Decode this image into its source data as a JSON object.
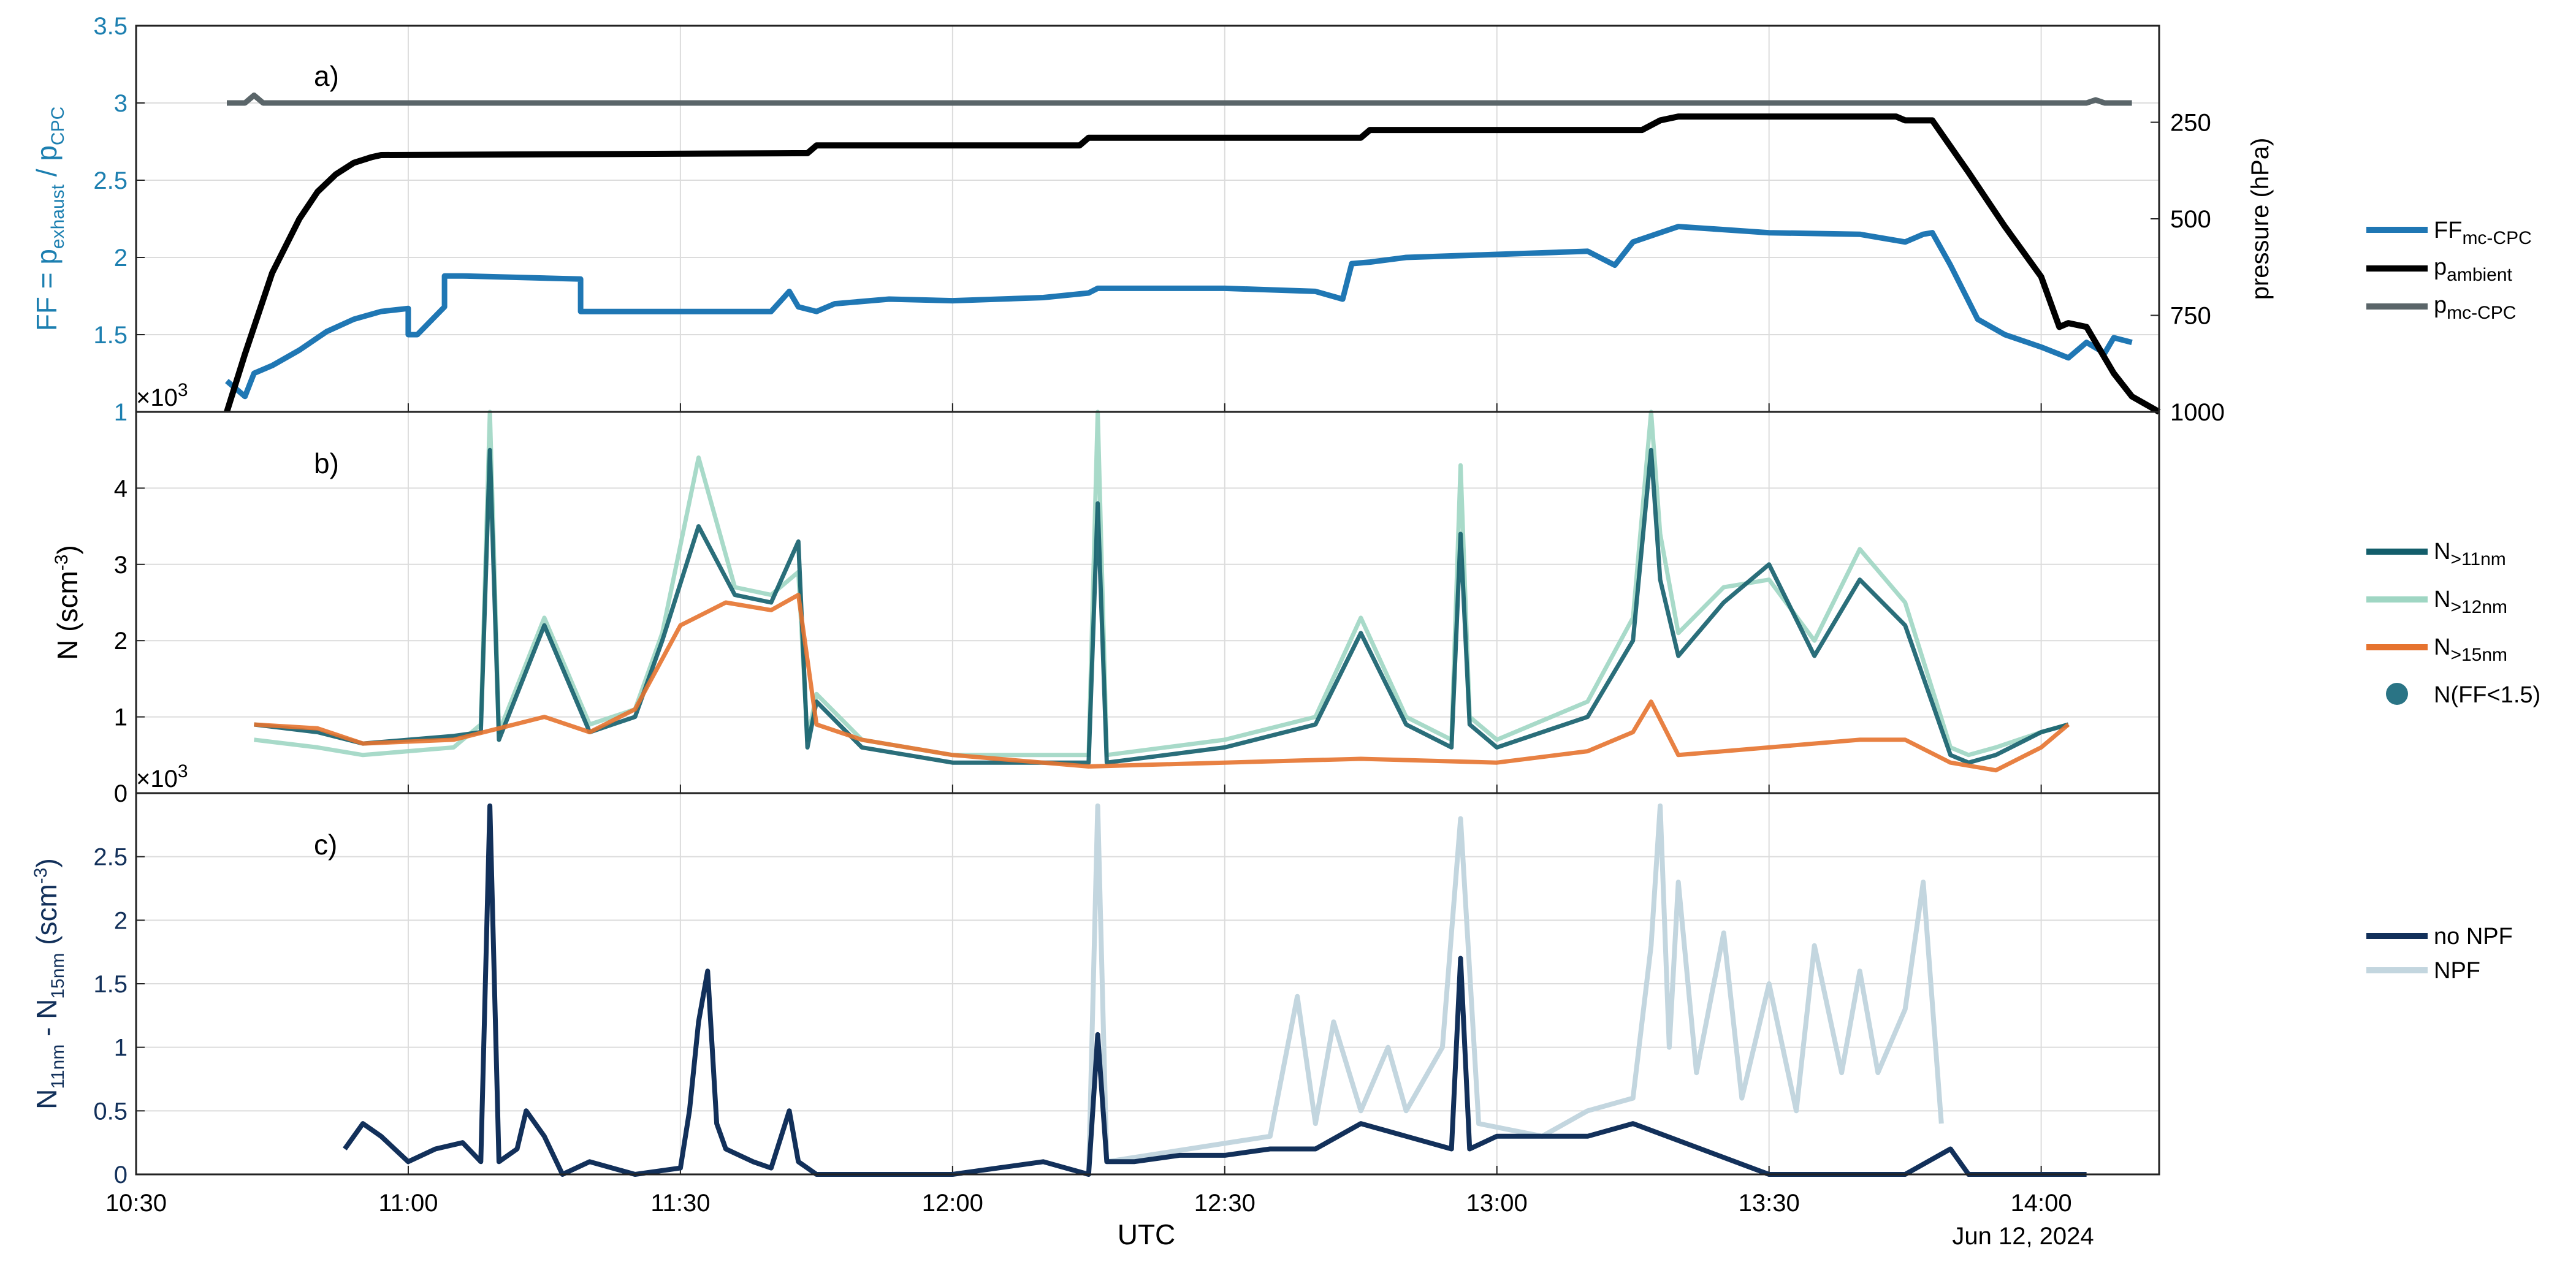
{
  "chart_data": [
    {
      "panel_label": "a)",
      "type": "line",
      "x_axis": {
        "ticks": [
          "10:30",
          "11:00",
          "11:30",
          "12:00",
          "12:30",
          "13:00",
          "13:30",
          "14:00"
        ],
        "label": "UTC",
        "date": "Jun 12, 2024",
        "range": [
          "10:30",
          "14:13"
        ]
      },
      "y_left": {
        "label_main": "FF = p",
        "label_sub1": "exhaust",
        "label_mid": " / p",
        "label_sub2": "CPC",
        "ylim": [
          1,
          3.5
        ],
        "ticks": [
          "1",
          "1.5",
          "2",
          "2.5",
          "3",
          "3.5"
        ]
      },
      "y_right": {
        "label": "pressure (hPa)",
        "ylim": [
          1000,
          0
        ],
        "ticks": [
          "250",
          "500",
          "750",
          "1000"
        ],
        "reversed": true
      },
      "series": [
        {
          "name": "FF",
          "name_sub": "mc-CPC",
          "color": "#1f77b4",
          "axis": "left",
          "x": [
            "10:40",
            "10:42",
            "10:43",
            "10:45",
            "10:48",
            "10:51",
            "10:54",
            "10:57",
            "11:00",
            "11:00",
            "11:01",
            "11:04",
            "11:04",
            "11:05",
            "11:06",
            "11:19",
            "11:19",
            "11:30",
            "11:40",
            "11:42",
            "11:43",
            "11:45",
            "11:47",
            "11:53",
            "12:00",
            "12:10",
            "12:15",
            "12:16",
            "12:30",
            "12:40",
            "12:43",
            "12:44",
            "12:46",
            "12:50",
            "13:00",
            "13:10",
            "13:13",
            "13:15",
            "13:20",
            "13:30",
            "13:40",
            "13:45",
            "13:47",
            "13:48",
            "13:50",
            "13:53",
            "13:56",
            "14:00",
            "14:03",
            "14:05",
            "14:07",
            "14:08",
            "14:10"
          ],
          "y": [
            1.2,
            1.1,
            1.25,
            1.3,
            1.4,
            1.52,
            1.6,
            1.65,
            1.67,
            1.5,
            1.5,
            1.68,
            1.88,
            1.88,
            1.88,
            1.86,
            1.65,
            1.65,
            1.65,
            1.78,
            1.68,
            1.65,
            1.7,
            1.73,
            1.72,
            1.74,
            1.77,
            1.8,
            1.8,
            1.78,
            1.73,
            1.96,
            1.97,
            2.0,
            2.02,
            2.04,
            1.95,
            2.1,
            2.2,
            2.16,
            2.15,
            2.1,
            2.15,
            2.16,
            1.95,
            1.6,
            1.5,
            1.42,
            1.35,
            1.45,
            1.38,
            1.48,
            1.45
          ]
        },
        {
          "name": "p",
          "name_sub": "ambient",
          "color": "#000000",
          "axis": "right",
          "x": [
            "10:40",
            "10:42",
            "10:45",
            "10:48",
            "10:50",
            "10:52",
            "10:54",
            "10:56",
            "10:57",
            "11:44",
            "11:45",
            "12:14",
            "12:15",
            "12:45",
            "12:46",
            "13:16",
            "13:18",
            "13:20",
            "13:44",
            "13:45",
            "13:48",
            "13:52",
            "13:56",
            "14:00",
            "14:02",
            "14:03",
            "14:05",
            "14:08",
            "14:10",
            "14:13"
          ],
          "y": [
            1000,
            850,
            640,
            500,
            430,
            385,
            355,
            340,
            335,
            330,
            310,
            310,
            290,
            290,
            270,
            270,
            245,
            235,
            235,
            245,
            245,
            380,
            520,
            650,
            780,
            770,
            780,
            900,
            960,
            1000
          ]
        },
        {
          "name": "p",
          "name_sub": "mc-CPC",
          "color": "#5a6569",
          "axis": "left",
          "x": [
            "10:40",
            "10:42",
            "10:43",
            "10:44",
            "14:05",
            "14:06",
            "14:07",
            "14:10"
          ],
          "y": [
            3.0,
            3.0,
            3.05,
            3.0,
            3.0,
            3.02,
            3.0,
            3.0
          ]
        }
      ]
    },
    {
      "panel_label": "b)",
      "type": "line",
      "exponent": "×10",
      "exponent_power": "3",
      "y": {
        "label_main": "N (scm",
        "label_sup": "-3",
        "label_end": ")",
        "ylim": [
          0,
          5
        ],
        "ticks": [
          "0",
          "1",
          "2",
          "3",
          "4"
        ]
      },
      "series": [
        {
          "name": "N",
          "name_sub": ">11nm",
          "color": "#135e6b",
          "x": [
            "10:43",
            "10:50",
            "10:55",
            "11:05",
            "11:08",
            "11:09",
            "11:10",
            "11:15",
            "11:20",
            "11:25",
            "11:28",
            "11:32",
            "11:36",
            "11:40",
            "11:43",
            "11:44",
            "11:45",
            "11:50",
            "12:00",
            "12:15",
            "12:16",
            "12:17",
            "12:30",
            "12:40",
            "12:45",
            "12:50",
            "12:55",
            "12:56",
            "12:57",
            "13:00",
            "13:10",
            "13:15",
            "13:17",
            "13:18",
            "13:20",
            "13:25",
            "13:30",
            "13:35",
            "13:40",
            "13:45",
            "13:50",
            "13:52",
            "13:55",
            "14:00",
            "14:03"
          ],
          "y": [
            0.9,
            0.8,
            0.65,
            0.75,
            0.8,
            4.5,
            0.7,
            2.2,
            0.8,
            1.0,
            2.0,
            3.5,
            2.6,
            2.5,
            3.3,
            0.6,
            1.2,
            0.6,
            0.4,
            0.4,
            3.8,
            0.4,
            0.6,
            0.9,
            2.1,
            0.9,
            0.6,
            3.4,
            0.9,
            0.6,
            1.0,
            2.0,
            4.5,
            2.8,
            1.8,
            2.5,
            3.0,
            1.8,
            2.8,
            2.2,
            0.5,
            0.4,
            0.5,
            0.8,
            0.9
          ]
        },
        {
          "name": "N",
          "name_sub": ">12nm",
          "color": "#9fd6c3",
          "x": [
            "10:43",
            "10:50",
            "10:55",
            "11:05",
            "11:08",
            "11:09",
            "11:10",
            "11:15",
            "11:20",
            "11:25",
            "11:28",
            "11:32",
            "11:36",
            "11:40",
            "11:43",
            "11:44",
            "11:45",
            "11:50",
            "12:00",
            "12:15",
            "12:16",
            "12:17",
            "12:30",
            "12:40",
            "12:45",
            "12:50",
            "12:55",
            "12:56",
            "12:57",
            "13:00",
            "13:10",
            "13:15",
            "13:17",
            "13:18",
            "13:20",
            "13:25",
            "13:30",
            "13:35",
            "13:40",
            "13:45",
            "13:50",
            "13:52",
            "13:55",
            "14:00",
            "14:03"
          ],
          "y": [
            0.7,
            0.6,
            0.5,
            0.6,
            0.9,
            5.0,
            0.8,
            2.3,
            0.9,
            1.1,
            2.1,
            4.4,
            2.7,
            2.6,
            2.9,
            0.7,
            1.3,
            0.7,
            0.5,
            0.5,
            5.0,
            0.5,
            0.7,
            1.0,
            2.3,
            1.0,
            0.7,
            4.3,
            1.0,
            0.7,
            1.2,
            2.3,
            5.0,
            3.4,
            2.1,
            2.7,
            2.8,
            2.0,
            3.2,
            2.5,
            0.6,
            0.5,
            0.6,
            0.8,
            0.9
          ]
        },
        {
          "name": "N",
          "name_sub": ">15nm",
          "color": "#e6732f",
          "x": [
            "10:43",
            "10:50",
            "10:55",
            "11:05",
            "11:10",
            "11:15",
            "11:20",
            "11:25",
            "11:30",
            "11:35",
            "11:40",
            "11:43",
            "11:45",
            "11:50",
            "12:00",
            "12:15",
            "12:30",
            "12:45",
            "13:00",
            "13:10",
            "13:15",
            "13:17",
            "13:20",
            "13:30",
            "13:40",
            "13:45",
            "13:50",
            "13:55",
            "14:00",
            "14:03"
          ],
          "y": [
            0.9,
            0.85,
            0.65,
            0.7,
            0.85,
            1.0,
            0.8,
            1.1,
            2.2,
            2.5,
            2.4,
            2.6,
            0.9,
            0.7,
            0.5,
            0.35,
            0.4,
            0.45,
            0.4,
            0.55,
            0.8,
            1.2,
            0.5,
            0.6,
            0.7,
            0.7,
            0.4,
            0.3,
            0.6,
            0.9
          ]
        }
      ],
      "scatter": {
        "name": "N(FF<1.5)",
        "color": "#2a7485"
      }
    },
    {
      "panel_label": "c)",
      "type": "line",
      "exponent": "×10",
      "exponent_power": "3",
      "y": {
        "label_main": "N",
        "label_sub1": "11nm",
        "label_mid": " - N",
        "label_sub2": "15nm",
        "label_end1": " (scm",
        "label_sup": "-3",
        "label_end2": ")",
        "ylim": [
          0,
          3
        ],
        "ticks": [
          "0",
          "0.5",
          "1",
          "1.5",
          "2",
          "2.5"
        ]
      },
      "series": [
        {
          "name": "no NPF",
          "color": "#12305a",
          "x": [
            "10:53",
            "10:55",
            "10:57",
            "11:00",
            "11:03",
            "11:06",
            "11:08",
            "11:09",
            "11:10",
            "11:12",
            "11:13",
            "11:15",
            "11:17",
            "11:20",
            "11:25",
            "11:30",
            "11:31",
            "11:32",
            "11:33",
            "11:34",
            "11:35",
            "11:38",
            "11:40",
            "11:42",
            "11:43",
            "11:45",
            "11:50",
            "12:00",
            "12:05",
            "12:10",
            "12:15",
            "12:16",
            "12:17",
            "12:20",
            "12:25",
            "12:30",
            "12:35",
            "12:40",
            "12:45",
            "12:50",
            "12:55",
            "12:56",
            "12:57",
            "13:00",
            "13:05",
            "13:10",
            "13:15",
            "13:30",
            "13:45",
            "13:50",
            "13:52",
            "13:55",
            "14:00",
            "14:05"
          ],
          "y": [
            0.2,
            0.4,
            0.3,
            0.1,
            0.2,
            0.25,
            0.1,
            2.9,
            0.1,
            0.2,
            0.5,
            0.3,
            0.0,
            0.1,
            0.0,
            0.05,
            0.5,
            1.2,
            1.6,
            0.4,
            0.2,
            0.1,
            0.05,
            0.5,
            0.1,
            0.0,
            0.0,
            0.0,
            0.05,
            0.1,
            0.0,
            1.1,
            0.1,
            0.1,
            0.15,
            0.15,
            0.2,
            0.2,
            0.4,
            0.3,
            0.2,
            1.7,
            0.2,
            0.3,
            0.3,
            0.3,
            0.4,
            0.0,
            0.0,
            0.2,
            0.0,
            0.0,
            0.0,
            0.0
          ]
        },
        {
          "name": "NPF",
          "color": "#c3d6df",
          "x": [
            "12:15",
            "12:16",
            "12:17",
            "12:35",
            "12:38",
            "12:40",
            "12:42",
            "12:45",
            "12:48",
            "12:50",
            "12:54",
            "12:56",
            "12:58",
            "13:05",
            "13:10",
            "13:15",
            "13:17",
            "13:18",
            "13:19",
            "13:20",
            "13:22",
            "13:25",
            "13:27",
            "13:30",
            "13:33",
            "13:35",
            "13:38",
            "13:40",
            "13:42",
            "13:45",
            "13:47",
            "13:49"
          ],
          "y": [
            0.0,
            2.9,
            0.1,
            0.3,
            1.4,
            0.4,
            1.2,
            0.5,
            1.0,
            0.5,
            1.0,
            2.8,
            0.4,
            0.3,
            0.5,
            0.6,
            1.8,
            2.9,
            1.0,
            2.3,
            0.8,
            1.9,
            0.6,
            1.5,
            0.5,
            1.8,
            0.8,
            1.6,
            0.8,
            1.3,
            2.3,
            0.4
          ]
        }
      ]
    }
  ]
}
